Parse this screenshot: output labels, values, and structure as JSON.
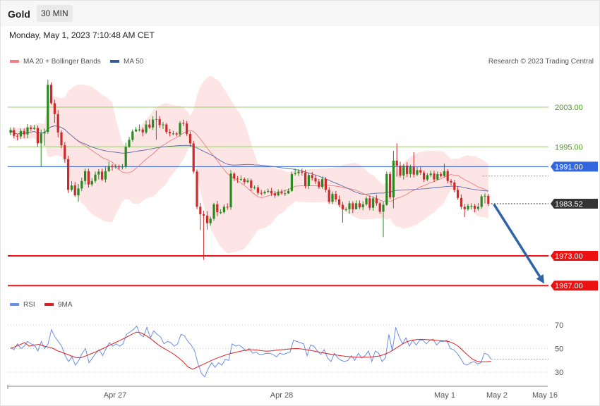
{
  "header": {
    "instrument": "Gold",
    "timeframe": "30 MIN",
    "timestamp": "Monday, May 1, 2023 7:10:48 AM CET"
  },
  "legend": {
    "ma20_bollinger": "MA 20 + Bollinger Bands",
    "ma50": "MA 50",
    "credit": "Research © 2023 Trading Central"
  },
  "rsi_legend": {
    "rsi": "RSI",
    "ma9": "9MA"
  },
  "colors": {
    "up": "#2a8a22",
    "down": "#cc2b2b",
    "band": "#fde1e1",
    "ma20": "#f07070",
    "ma50": "#5a6aa8",
    "resistance": "#9ccc72",
    "pivot": "#3366dd",
    "support": "#ee1111",
    "current": "#333333",
    "arrow": "#2e63a8",
    "rsi": "#6a8ee6",
    "rsi_ma": "#e02020"
  },
  "chart_data": {
    "type": "candlestick",
    "price_range": [
      1963,
      2015
    ],
    "x_labels": [
      "Apr 27",
      "Apr 28",
      "May 1",
      "May 2",
      "May 16"
    ],
    "levels": [
      {
        "label": "2003.00",
        "value": 2003.0,
        "kind": "resistance"
      },
      {
        "label": "1995.00",
        "value": 1995.0,
        "kind": "resistance"
      },
      {
        "label": "1991.00",
        "value": 1991.0,
        "kind": "pivot"
      },
      {
        "label": "1983.52",
        "value": 1983.52,
        "kind": "current"
      },
      {
        "label": "1973.00",
        "value": 1973.0,
        "kind": "support"
      },
      {
        "label": "1967.00",
        "value": 1967.0,
        "kind": "support"
      }
    ],
    "forecast": {
      "from": 1983.4,
      "to": 1967.4
    },
    "candles": [
      [
        1997.8,
        1998.4,
        1998.9,
        1997.3
      ],
      [
        1998.4,
        1997.2,
        1998.9,
        1996.7
      ],
      [
        1997.2,
        1997.1,
        1997.6,
        1996.3
      ],
      [
        1997.1,
        1998.2,
        1998.7,
        1996.6
      ],
      [
        1998.2,
        1997.5,
        1998.7,
        1996.7
      ],
      [
        1997.5,
        1998.9,
        1999.6,
        1996.7
      ],
      [
        1998.9,
        1998.6,
        1999.4,
        1998.2
      ],
      [
        1998.6,
        1998.8,
        1999.4,
        1998.4
      ],
      [
        1998.8,
        1995.7,
        1999.3,
        1995.0
      ],
      [
        1995.7,
        1997.7,
        1998.5,
        1991.0
      ],
      [
        1997.7,
        1998.0,
        1998.7,
        1995.2
      ],
      [
        1998.0,
        2007.5,
        2008.5,
        1997.6
      ],
      [
        2007.5,
        2003.8,
        2008.0,
        2003.5
      ],
      [
        2003.8,
        2001.6,
        2004.5,
        1999.8
      ],
      [
        2001.6,
        1997.9,
        2002.4,
        1996.9
      ],
      [
        1997.9,
        1995.3,
        1998.3,
        1994.7
      ],
      [
        1995.3,
        1992.5,
        1996.0,
        1991.8
      ],
      [
        1992.5,
        1986.3,
        1993.2,
        1985.7
      ],
      [
        1986.3,
        1987.2,
        1988.1,
        1986.0
      ],
      [
        1987.2,
        1985.2,
        1987.9,
        1984.9
      ],
      [
        1985.2,
        1986.6,
        1987.5,
        1983.9
      ],
      [
        1986.6,
        1988.1,
        1988.8,
        1986.1
      ],
      [
        1988.1,
        1990.1,
        1990.6,
        1987.4
      ],
      [
        1990.1,
        1987.4,
        1990.6,
        1986.8
      ],
      [
        1987.4,
        1988.1,
        1988.7,
        1987.0
      ],
      [
        1988.1,
        1989.4,
        1990.0,
        1987.7
      ],
      [
        1989.4,
        1990.0,
        1990.5,
        1988.4
      ],
      [
        1990.0,
        1988.4,
        1990.6,
        1988.1
      ],
      [
        1988.4,
        1990.1,
        1991.0,
        1987.8
      ],
      [
        1990.1,
        1991.1,
        1992.0,
        1989.9
      ],
      [
        1991.1,
        1990.9,
        1991.5,
        1990.2
      ],
      [
        1990.9,
        1991.0,
        1991.5,
        1990.6
      ],
      [
        1991.0,
        1990.9,
        1991.4,
        1990.4
      ],
      [
        1990.9,
        1991.0,
        1991.5,
        1990.4
      ],
      [
        1991.0,
        1995.0,
        1995.8,
        1990.6
      ],
      [
        1995.0,
        1996.4,
        1997.0,
        1994.8
      ],
      [
        1996.4,
        1998.1,
        1998.5,
        1996.0
      ],
      [
        1998.1,
        1998.5,
        1999.0,
        1998.0
      ],
      [
        1998.5,
        1998.5,
        1999.5,
        1998.1
      ],
      [
        1998.5,
        1997.9,
        1998.9,
        1997.1
      ],
      [
        1997.9,
        1999.5,
        2000.3,
        1997.6
      ],
      [
        1999.5,
        1998.9,
        2000.5,
        1998.6
      ],
      [
        1998.9,
        2000.5,
        2001.2,
        1998.4
      ],
      [
        2000.5,
        2000.6,
        2002.3,
        1996.4
      ],
      [
        2000.6,
        1999.4,
        2001.2,
        1998.8
      ],
      [
        1999.4,
        1999.5,
        2000.0,
        1998.6
      ],
      [
        1999.5,
        1998.0,
        1999.8,
        1997.6
      ],
      [
        1998.0,
        1997.7,
        1998.6,
        1997.1
      ],
      [
        1997.7,
        1997.7,
        1998.2,
        1997.3
      ],
      [
        1997.7,
        1997.5,
        1998.0,
        1997.1
      ],
      [
        1997.5,
        1999.8,
        2000.2,
        1997.0
      ],
      [
        1999.8,
        1999.7,
        2000.5,
        1999.2
      ],
      [
        1999.7,
        1997.6,
        2000.2,
        1997.2
      ],
      [
        1997.6,
        1995.7,
        1998.1,
        1995.0
      ],
      [
        1995.7,
        1990.0,
        1996.2,
        1989.6
      ],
      [
        1990.0,
        1982.9,
        1990.4,
        1982.4
      ],
      [
        1982.9,
        1981.4,
        1983.7,
        1978.2
      ],
      [
        1981.4,
        1981.1,
        1982.1,
        1972.2
      ],
      [
        1981.1,
        1979.6,
        1982.0,
        1978.3
      ],
      [
        1979.6,
        1980.5,
        1980.9,
        1979.1
      ],
      [
        1980.5,
        1983.4,
        1983.7,
        1980.1
      ],
      [
        1983.4,
        1981.8,
        1984.1,
        1981.0
      ],
      [
        1981.8,
        1981.8,
        1982.4,
        1981.4
      ],
      [
        1981.8,
        1982.9,
        1983.4,
        1981.5
      ],
      [
        1982.9,
        1982.8,
        1983.6,
        1982.3
      ],
      [
        1982.8,
        1989.6,
        1990.3,
        1982.3
      ],
      [
        1989.6,
        1988.6,
        1989.9,
        1988.1
      ],
      [
        1988.6,
        1988.5,
        1989.1,
        1987.7
      ],
      [
        1988.5,
        1988.5,
        1989.2,
        1988.1
      ],
      [
        1988.5,
        1987.9,
        1988.8,
        1987.4
      ],
      [
        1987.9,
        1988.2,
        1988.7,
        1987.7
      ],
      [
        1988.2,
        1986.7,
        1988.6,
        1986.1
      ],
      [
        1986.7,
        1986.8,
        1987.2,
        1986.4
      ],
      [
        1986.8,
        1985.7,
        1987.3,
        1985.3
      ],
      [
        1985.7,
        1985.6,
        1986.3,
        1985.2
      ],
      [
        1985.6,
        1985.9,
        1986.2,
        1985.4
      ],
      [
        1985.9,
        1986.1,
        1986.6,
        1985.7
      ],
      [
        1986.1,
        1985.6,
        1986.7,
        1985.1
      ],
      [
        1985.6,
        1985.2,
        1986.1,
        1984.7
      ],
      [
        1985.2,
        1985.9,
        1986.4,
        1985.0
      ],
      [
        1985.9,
        1985.6,
        1986.4,
        1985.3
      ],
      [
        1985.6,
        1985.6,
        1986.3,
        1985.1
      ],
      [
        1985.6,
        1986.1,
        1986.6,
        1985.5
      ],
      [
        1986.1,
        1989.5,
        1990.0,
        1985.9
      ],
      [
        1989.5,
        1989.7,
        1990.6,
        1989.2
      ],
      [
        1989.7,
        1990.0,
        1990.5,
        1989.1
      ],
      [
        1990.0,
        1989.8,
        1990.6,
        1989.2
      ],
      [
        1989.8,
        1987.1,
        1990.4,
        1986.6
      ],
      [
        1987.1,
        1989.3,
        1989.7,
        1986.5
      ],
      [
        1989.3,
        1988.7,
        1989.9,
        1988.2
      ],
      [
        1988.7,
        1988.0,
        1989.2,
        1987.5
      ],
      [
        1988.0,
        1986.9,
        1988.5,
        1986.5
      ],
      [
        1986.9,
        1988.5,
        1989.0,
        1986.5
      ],
      [
        1988.5,
        1986.3,
        1988.9,
        1985.8
      ],
      [
        1986.3,
        1983.9,
        1986.9,
        1983.5
      ],
      [
        1983.9,
        1985.5,
        1986.0,
        1983.4
      ],
      [
        1985.5,
        1984.4,
        1986.1,
        1983.9
      ],
      [
        1984.4,
        1983.3,
        1985.2,
        1982.8
      ],
      [
        1983.3,
        1982.4,
        1983.9,
        1979.7
      ],
      [
        1982.4,
        1982.4,
        1982.8,
        1982.0
      ],
      [
        1982.4,
        1983.6,
        1984.1,
        1981.5
      ],
      [
        1983.6,
        1982.4,
        1984.0,
        1981.6
      ],
      [
        1982.4,
        1983.6,
        1984.2,
        1983.0
      ],
      [
        1983.6,
        1982.8,
        1984.2,
        1982.4
      ],
      [
        1982.8,
        1983.4,
        1984.0,
        1982.2
      ],
      [
        1983.4,
        1984.6,
        1985.0,
        1983.1
      ],
      [
        1984.6,
        1982.7,
        1985.2,
        1982.2
      ],
      [
        1982.7,
        1984.6,
        1985.0,
        1982.1
      ],
      [
        1984.6,
        1983.6,
        1985.3,
        1983.1
      ],
      [
        1983.6,
        1981.9,
        1983.9,
        1981.5
      ],
      [
        1981.9,
        1983.3,
        1983.9,
        1976.8
      ],
      [
        1983.3,
        1989.5,
        1990.0,
        1983.1
      ],
      [
        1989.5,
        1984.8,
        1990.0,
        1984.4
      ],
      [
        1984.8,
        1992.2,
        1994.2,
        1982.6
      ],
      [
        1992.2,
        1991.2,
        1995.7,
        1989.0
      ],
      [
        1991.2,
        1989.2,
        1992.0,
        1988.8
      ],
      [
        1989.2,
        1991.2,
        1991.5,
        1988.4
      ],
      [
        1991.2,
        1989.5,
        1991.9,
        1988.9
      ],
      [
        1989.5,
        1991.0,
        1991.4,
        1988.8
      ],
      [
        1991.0,
        1989.4,
        1993.9,
        1988.8
      ],
      [
        1989.4,
        1990.3,
        1990.9,
        1989.1
      ],
      [
        1990.3,
        1989.8,
        1990.9,
        1989.3
      ],
      [
        1989.8,
        1988.4,
        1990.2,
        1987.9
      ],
      [
        1988.4,
        1989.3,
        1989.7,
        1988.1
      ],
      [
        1989.3,
        1989.6,
        1990.2,
        1988.9
      ],
      [
        1989.6,
        1988.4,
        1990.2,
        1987.9
      ],
      [
        1988.4,
        1989.5,
        1990.0,
        1988.2
      ],
      [
        1989.5,
        1989.1,
        1989.9,
        1988.8
      ],
      [
        1989.1,
        1990.1,
        1991.6,
        1988.8
      ],
      [
        1990.1,
        1988.1,
        1990.5,
        1987.6
      ],
      [
        1988.1,
        1987.8,
        1988.5,
        1987.2
      ],
      [
        1987.8,
        1986.3,
        1988.3,
        1985.8
      ],
      [
        1986.3,
        1984.7,
        1987.0,
        1984.3
      ],
      [
        1984.7,
        1982.9,
        1985.4,
        1982.4
      ],
      [
        1982.9,
        1982.4,
        1983.5,
        1980.8
      ],
      [
        1982.4,
        1983.1,
        1983.5,
        1982.1
      ],
      [
        1983.1,
        1983.1,
        1983.6,
        1982.4
      ],
      [
        1983.1,
        1982.5,
        1983.5,
        1981.8
      ],
      [
        1982.5,
        1982.9,
        1983.7,
        1982.1
      ],
      [
        1982.9,
        1985.0,
        1985.4,
        1982.5
      ],
      [
        1985.0,
        1985.1,
        1985.6,
        1983.6
      ],
      [
        1985.1,
        1983.5,
        1985.5,
        1983.0
      ]
    ],
    "rsi": {
      "range": [
        20,
        80
      ],
      "ticks": [
        70,
        50,
        30
      ],
      "rsi": [
        51,
        49,
        54,
        50,
        52,
        56,
        54,
        53,
        48,
        56,
        50,
        54,
        66,
        60,
        56,
        52,
        44,
        39,
        43,
        36,
        40,
        46,
        50,
        38,
        42,
        46,
        49,
        44,
        50,
        55,
        52,
        54,
        52,
        54,
        62,
        64,
        66,
        69,
        62,
        60,
        68,
        59,
        65,
        62,
        60,
        54,
        56,
        55,
        52,
        54,
        62,
        61,
        56,
        53,
        48,
        37,
        29,
        26,
        33,
        38,
        34,
        38,
        36,
        41,
        40,
        54,
        52,
        53,
        51,
        48,
        50,
        46,
        47,
        45,
        45,
        46,
        46,
        45,
        43,
        46,
        45,
        46,
        47,
        57,
        56,
        55,
        54,
        44,
        53,
        52,
        48,
        45,
        49,
        42,
        39,
        46,
        42,
        40,
        39,
        40,
        44,
        40,
        46,
        42,
        44,
        48,
        39,
        48,
        46,
        39,
        42,
        62,
        48,
        68,
        60,
        54,
        59,
        52,
        57,
        53,
        57,
        57,
        54,
        57,
        58,
        53,
        56,
        56,
        57,
        50,
        49,
        46,
        42,
        37,
        36,
        38,
        39,
        37,
        38,
        46,
        45,
        41
      ],
      "ma9": [
        50.0,
        51.7,
        53.3,
        55.0,
        52.0,
        52.8,
        53.6,
        52.3,
        51.3,
        50.3,
        48.2,
        46.8,
        45.3,
        43.8,
        42.4,
        42.1,
        43.6,
        45.2,
        46.8,
        48.5,
        50.4,
        52.3,
        54.2,
        56.1,
        58.0,
        60.0,
        62.1,
        64.0,
        63.2,
        61.1,
        58.4,
        55.2,
        52.2,
        49.9,
        47.6,
        45.2,
        42.2,
        38.8,
        34.5,
        32.5,
        34.3,
        36.1,
        37.9,
        39.8,
        41.5,
        43.0,
        44.4,
        45.7,
        46.6,
        47.5,
        48.3,
        48.9,
        49.0,
        48.7,
        48.1,
        47.8,
        48.1,
        48.6,
        49.0,
        49.4,
        49.7,
        50.0,
        49.8,
        49.2,
        48.6,
        47.9,
        47.1,
        46.4,
        45.6,
        45.0,
        44.4,
        43.8,
        43.4,
        43.0,
        42.7,
        42.6,
        42.7,
        42.8,
        43.2,
        43.7,
        44.9,
        46.5,
        48.8,
        51.3,
        53.9,
        55.9,
        57.0,
        57.6,
        57.8,
        57.6,
        57.4,
        57.0,
        56.7,
        56.4,
        55.9,
        54.3,
        51.8,
        48.1,
        44.3,
        41.0,
        39.2,
        38.7,
        38.9,
        39.2
      ],
      "ma9_start_index": 0
    }
  }
}
